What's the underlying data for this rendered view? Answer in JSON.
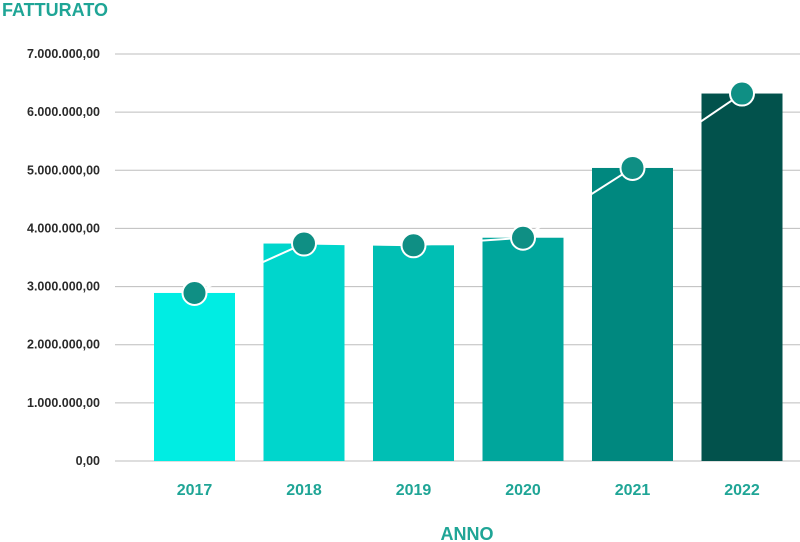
{
  "chart_data": {
    "type": "bar",
    "title": "",
    "ylabel": "FATTURATO",
    "xlabel": "ANNO",
    "categories": [
      "2017",
      "2018",
      "2019",
      "2020",
      "2021",
      "2022"
    ],
    "values": [
      2890000,
      3740000,
      3710000,
      3840000,
      5040000,
      6320000
    ],
    "ylim": [
      0,
      7000000
    ],
    "yticks": [
      0,
      1000000,
      2000000,
      3000000,
      4000000,
      5000000,
      6000000,
      7000000
    ],
    "ytick_labels": [
      "0,00",
      "1.000.000,00",
      "2.000.000,00",
      "3.000.000,00",
      "4.000.000,00",
      "5.000.000,00",
      "6.000.000,00",
      "7.000.000,00"
    ],
    "grid": true,
    "legend": "none",
    "bar_colors": [
      "#00ede3",
      "#00d6cc",
      "#00bfb4",
      "#00a69c",
      "#00887f",
      "#02524c"
    ],
    "accent_color": "#1fa596",
    "marker_color": "#0f8f84"
  }
}
